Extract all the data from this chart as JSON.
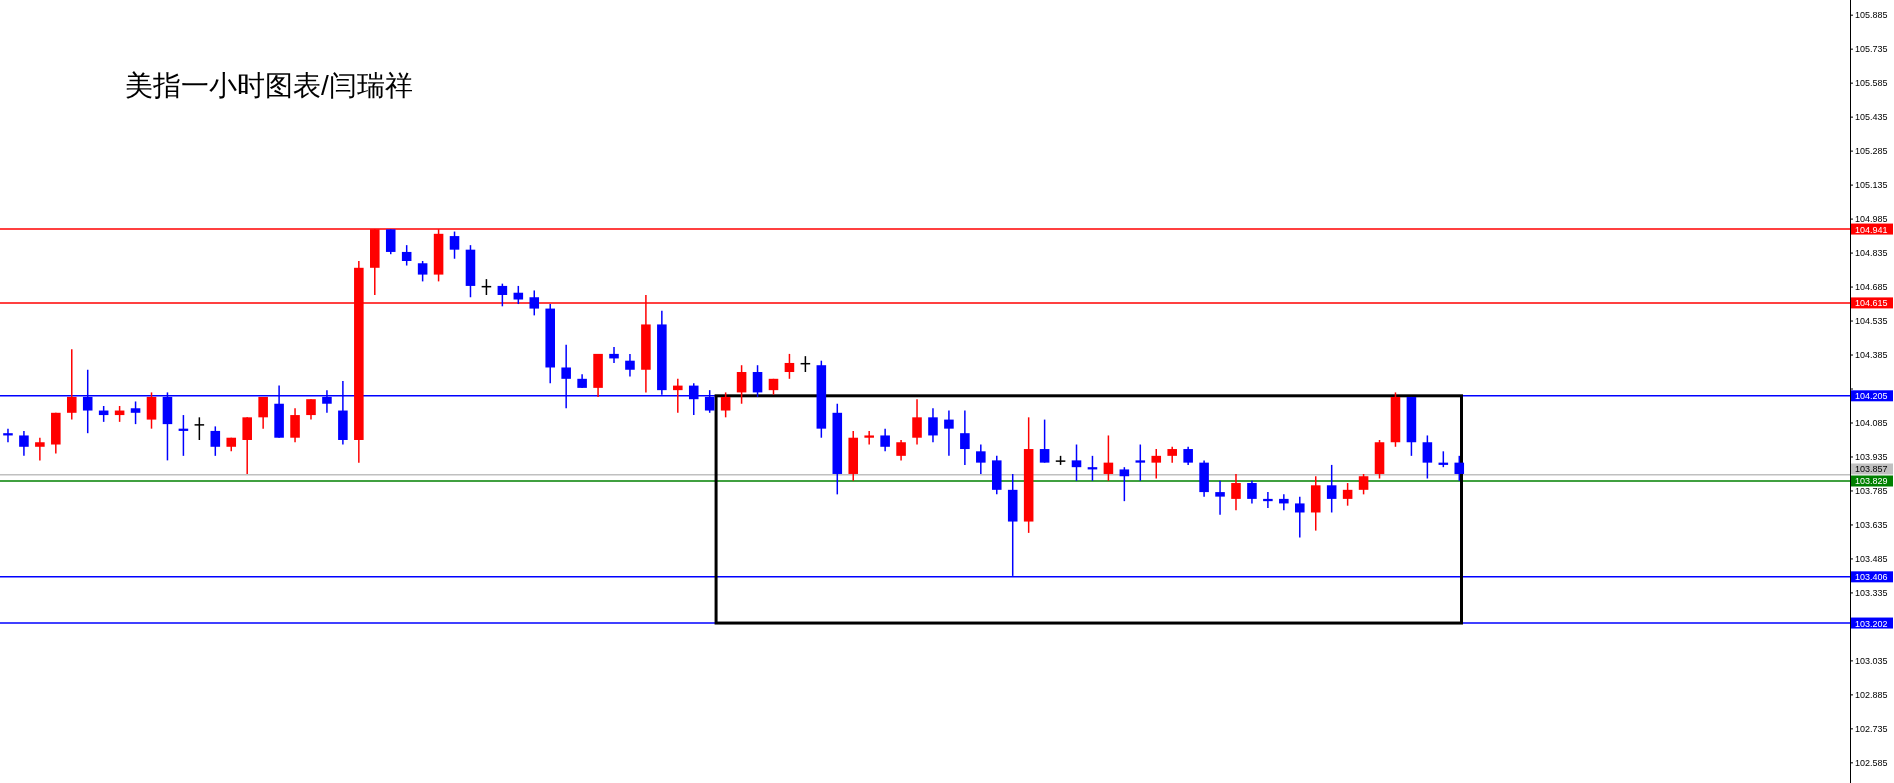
{
  "chart_data": {
    "type": "candlestick",
    "title": "美指一小时图表/闫瑞祥",
    "categories": [
      null,
      null,
      null,
      null,
      null,
      null,
      null,
      null,
      null,
      null,
      null,
      null,
      null,
      null,
      null,
      null,
      null,
      null,
      null,
      null,
      null,
      null,
      null,
      null,
      null,
      null,
      null,
      null,
      null,
      null,
      null,
      null,
      null,
      null,
      null,
      null,
      null,
      null,
      null,
      null,
      null,
      null,
      null,
      null,
      null,
      null,
      null,
      null,
      null,
      null,
      null,
      null,
      null,
      null,
      null,
      null,
      null,
      null,
      null,
      null,
      null,
      null,
      null,
      null,
      null,
      null,
      null,
      null,
      null,
      null,
      null,
      null,
      null,
      null,
      null,
      null,
      null,
      null,
      null,
      null,
      null,
      null,
      null,
      null,
      null,
      null,
      null,
      null,
      null,
      null,
      null,
      null,
      null,
      null,
      null,
      null,
      null,
      null,
      null,
      null,
      null,
      null,
      null,
      null,
      null,
      null,
      null,
      null,
      null,
      null,
      null,
      null,
      null,
      null,
      null,
      null
    ],
    "ohlc": [
      [
        104.04,
        104.06,
        104.0,
        104.03
      ],
      [
        104.03,
        104.05,
        103.94,
        103.98
      ],
      [
        103.98,
        104.02,
        103.92,
        104.0
      ],
      [
        103.99,
        104.13,
        103.95,
        104.13
      ],
      [
        104.13,
        104.41,
        104.1,
        104.2
      ],
      [
        104.2,
        104.32,
        104.04,
        104.14
      ],
      [
        104.14,
        104.16,
        104.09,
        104.12
      ],
      [
        104.12,
        104.16,
        104.09,
        104.14
      ],
      [
        104.15,
        104.18,
        104.08,
        104.13
      ],
      [
        104.1,
        104.22,
        104.06,
        104.2
      ],
      [
        104.2,
        104.22,
        103.92,
        104.08
      ],
      [
        104.06,
        104.12,
        103.94,
        104.05
      ],
      [
        104.08,
        104.11,
        104.01,
        104.08
      ],
      [
        104.05,
        104.07,
        103.94,
        103.98
      ],
      [
        103.98,
        104.02,
        103.96,
        104.02
      ],
      [
        104.01,
        104.11,
        103.86,
        104.11
      ],
      [
        104.11,
        104.2,
        104.06,
        104.2
      ],
      [
        104.17,
        104.25,
        104.02,
        104.02
      ],
      [
        104.02,
        104.15,
        104.0,
        104.12
      ],
      [
        104.12,
        104.19,
        104.1,
        104.19
      ],
      [
        104.2,
        104.23,
        104.13,
        104.17
      ],
      [
        104.14,
        104.27,
        103.99,
        104.01
      ],
      [
        104.01,
        104.8,
        103.91,
        104.77
      ],
      [
        104.77,
        104.94,
        104.65,
        104.94
      ],
      [
        104.94,
        104.94,
        104.83,
        104.84
      ],
      [
        104.84,
        104.87,
        104.78,
        104.8
      ],
      [
        104.79,
        104.8,
        104.71,
        104.74
      ],
      [
        104.74,
        104.94,
        104.71,
        104.92
      ],
      [
        104.91,
        104.93,
        104.81,
        104.85
      ],
      [
        104.85,
        104.87,
        104.64,
        104.69
      ],
      [
        104.69,
        104.72,
        104.65,
        104.69
      ],
      [
        104.69,
        104.7,
        104.6,
        104.65
      ],
      [
        104.66,
        104.69,
        104.61,
        104.63
      ],
      [
        104.64,
        104.67,
        104.56,
        104.59
      ],
      [
        104.59,
        104.61,
        104.26,
        104.33
      ],
      [
        104.33,
        104.43,
        104.15,
        104.28
      ],
      [
        104.28,
        104.3,
        104.24,
        104.24
      ],
      [
        104.24,
        104.39,
        104.2,
        104.39
      ],
      [
        104.39,
        104.42,
        104.35,
        104.37
      ],
      [
        104.36,
        104.39,
        104.29,
        104.32
      ],
      [
        104.32,
        104.65,
        104.22,
        104.52
      ],
      [
        104.52,
        104.58,
        104.21,
        104.23
      ],
      [
        104.23,
        104.28,
        104.13,
        104.25
      ],
      [
        104.25,
        104.26,
        104.12,
        104.19
      ],
      [
        104.2,
        104.23,
        104.13,
        104.14
      ],
      [
        104.14,
        104.22,
        104.11,
        104.2
      ],
      [
        104.22,
        104.34,
        104.17,
        104.31
      ],
      [
        104.31,
        104.34,
        104.2,
        104.22
      ],
      [
        104.23,
        104.28,
        104.21,
        104.28
      ],
      [
        104.31,
        104.39,
        104.28,
        104.35
      ],
      [
        104.35,
        104.38,
        104.31,
        104.35
      ],
      [
        104.34,
        104.36,
        104.02,
        104.06
      ],
      [
        104.13,
        104.17,
        103.77,
        103.86
      ],
      [
        103.86,
        104.05,
        103.83,
        104.02
      ],
      [
        104.02,
        104.05,
        103.99,
        104.03
      ],
      [
        104.03,
        104.06,
        103.96,
        103.98
      ],
      [
        103.94,
        104.01,
        103.92,
        104.0
      ],
      [
        104.02,
        104.19,
        103.99,
        104.11
      ],
      [
        104.11,
        104.15,
        104.0,
        104.03
      ],
      [
        104.1,
        104.14,
        103.94,
        104.06
      ],
      [
        104.04,
        104.14,
        103.9,
        103.97
      ],
      [
        103.96,
        103.99,
        103.86,
        103.91
      ],
      [
        103.92,
        103.94,
        103.77,
        103.79
      ],
      [
        103.79,
        103.86,
        103.41,
        103.65
      ],
      [
        103.65,
        104.11,
        103.6,
        103.97
      ],
      [
        103.97,
        104.1,
        103.91,
        103.91
      ],
      [
        103.92,
        103.94,
        103.9,
        103.92
      ],
      [
        103.92,
        103.99,
        103.83,
        103.89
      ],
      [
        103.89,
        103.94,
        103.83,
        103.88
      ],
      [
        103.86,
        104.03,
        103.83,
        103.91
      ],
      [
        103.88,
        103.89,
        103.74,
        103.85
      ],
      [
        103.92,
        103.99,
        103.83,
        103.91
      ],
      [
        103.91,
        103.97,
        103.84,
        103.94
      ],
      [
        103.94,
        103.98,
        103.91,
        103.97
      ],
      [
        103.97,
        103.98,
        103.9,
        103.91
      ],
      [
        103.91,
        103.92,
        103.76,
        103.78
      ],
      [
        103.78,
        103.83,
        103.68,
        103.76
      ],
      [
        103.75,
        103.86,
        103.7,
        103.82
      ],
      [
        103.82,
        103.83,
        103.73,
        103.75
      ],
      [
        103.75,
        103.78,
        103.71,
        103.74
      ],
      [
        103.75,
        103.77,
        103.7,
        103.73
      ],
      [
        103.73,
        103.76,
        103.58,
        103.69
      ],
      [
        103.69,
        103.85,
        103.61,
        103.81
      ],
      [
        103.81,
        103.9,
        103.69,
        103.75
      ],
      [
        103.75,
        103.82,
        103.72,
        103.79
      ],
      [
        103.79,
        103.86,
        103.77,
        103.85
      ],
      [
        103.86,
        104.01,
        103.84,
        104.0
      ],
      [
        104.0,
        104.22,
        103.98,
        104.2
      ],
      [
        104.2,
        104.2,
        103.94,
        104.0
      ],
      [
        104.0,
        104.03,
        103.84,
        103.91
      ],
      [
        103.91,
        103.96,
        103.89,
        103.9
      ],
      [
        103.91,
        103.94,
        103.83,
        103.86
      ],
      null,
      null,
      null,
      null,
      null,
      null,
      null,
      null,
      null,
      null,
      null,
      null,
      null,
      null,
      null,
      null,
      null,
      null,
      null,
      null,
      null,
      null,
      null,
      null
    ],
    "colors": [
      "#0000ff",
      "#0000ff",
      "#ff0000",
      "#ff0000",
      "#ff0000",
      "#0000ff",
      "#0000ff",
      "#ff0000",
      "#0000ff",
      "#ff0000",
      "#0000ff",
      "#0000ff",
      "#000000",
      "#0000ff",
      "#ff0000",
      "#ff0000",
      "#ff0000",
      "#0000ff",
      "#ff0000",
      "#ff0000",
      "#0000ff",
      "#0000ff",
      "#ff0000",
      "#ff0000",
      "#0000ff",
      "#0000ff",
      "#0000ff",
      "#ff0000",
      "#0000ff",
      "#0000ff",
      "#000000",
      "#0000ff",
      "#0000ff",
      "#0000ff",
      "#0000ff",
      "#0000ff",
      "#0000ff",
      "#ff0000",
      "#0000ff",
      "#0000ff",
      "#ff0000",
      "#0000ff",
      "#ff0000",
      "#0000ff",
      "#0000ff",
      "#ff0000",
      "#ff0000",
      "#0000ff",
      "#ff0000",
      "#ff0000",
      "#000000",
      "#0000ff",
      "#0000ff",
      "#ff0000",
      "#ff0000",
      "#0000ff",
      "#ff0000",
      "#ff0000",
      "#0000ff",
      "#0000ff",
      "#0000ff",
      "#0000ff",
      "#0000ff",
      "#0000ff",
      "#ff0000",
      "#0000ff",
      "#000000",
      "#0000ff",
      "#0000ff",
      "#ff0000",
      "#0000ff",
      "#0000ff",
      "#ff0000",
      "#ff0000",
      "#0000ff",
      "#0000ff",
      "#0000ff",
      "#ff0000",
      "#0000ff",
      "#0000ff",
      "#0000ff",
      "#0000ff",
      "#ff0000",
      "#0000ff",
      "#ff0000",
      "#ff0000",
      "#ff0000",
      "#ff0000",
      "#0000ff",
      "#0000ff",
      "#0000ff",
      "#0000ff",
      null,
      null,
      null,
      null,
      null,
      null,
      null,
      null,
      null,
      null,
      null,
      null,
      null,
      null,
      null,
      null,
      null,
      null,
      null,
      null,
      null,
      null,
      null,
      null
    ],
    "ylim": [
      102.496,
      105.952
    ],
    "yticks": [
      102.585,
      102.735,
      102.885,
      103.035,
      {
        "value": 103.185,
        "label": null
      },
      103.335,
      103.485,
      103.635,
      103.785,
      103.935,
      104.085,
      {
        "value": 104.235,
        "label": null
      },
      104.385,
      104.535,
      104.685,
      104.835,
      104.985,
      105.135,
      105.285,
      105.435,
      105.585,
      105.735,
      105.885
    ],
    "tick_labels": "y",
    "ref_lines": [
      {
        "axis": "y",
        "value": 104.941,
        "label": "104.941",
        "color": "#ff0000"
      },
      {
        "axis": "y",
        "value": 104.615,
        "label": "104.615",
        "color": "#ff0000"
      },
      {
        "axis": "y",
        "value": 104.205,
        "label": "104.205",
        "color": "#0000ff"
      },
      {
        "axis": "y",
        "value": 103.857,
        "label": "103.857",
        "color": "#c0c0c0"
      },
      {
        "axis": "y",
        "value": 103.829,
        "label": "103.829",
        "color": "#008000"
      },
      {
        "axis": "y",
        "value": 103.406,
        "label": "103.406",
        "color": "#0000ff"
      },
      {
        "axis": "y",
        "value": 103.202,
        "label": "103.202",
        "color": "#0000ff"
      }
    ]
  }
}
